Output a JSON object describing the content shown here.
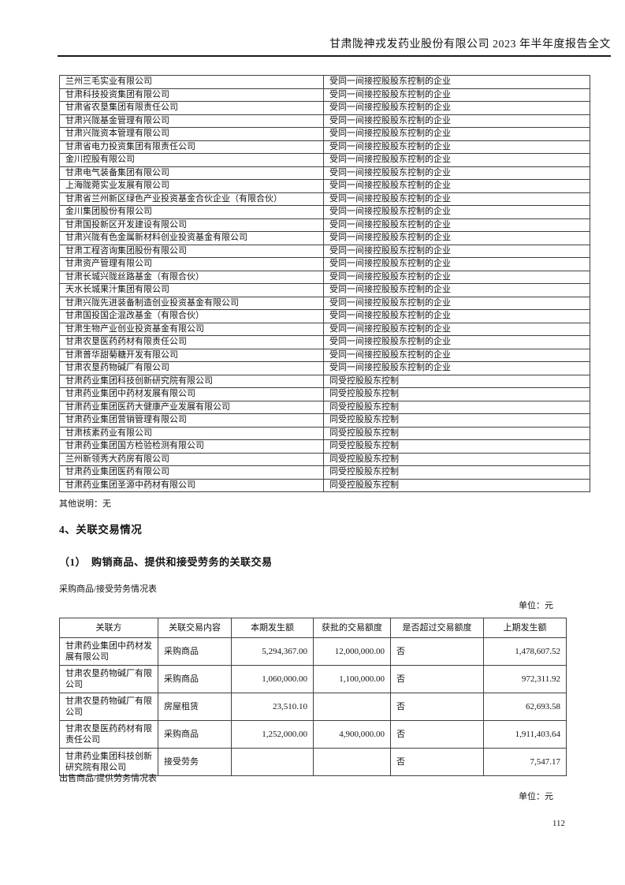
{
  "header": {
    "title": "甘肃陇神戎发药业股份有限公司 2023 年半年度报告全文"
  },
  "related_party_table": {
    "rows": [
      {
        "name": "兰州三毛实业有限公司",
        "relation": "受同一间接控股股东控制的企业"
      },
      {
        "name": "甘肃科技投资集团有限公司",
        "relation": "受同一间接控股股东控制的企业"
      },
      {
        "name": "甘肃省农垦集团有限责任公司",
        "relation": "受同一间接控股股东控制的企业"
      },
      {
        "name": "甘肃兴陇基金管理有限公司",
        "relation": "受同一间接控股股东控制的企业"
      },
      {
        "name": "甘肃兴陇资本管理有限公司",
        "relation": "受同一间接控股股东控制的企业"
      },
      {
        "name": "甘肃省电力投资集团有限责任公司",
        "relation": "受同一间接控股股东控制的企业"
      },
      {
        "name": "金川控股有限公司",
        "relation": "受同一间接控股股东控制的企业"
      },
      {
        "name": "甘肃电气装备集团有限公司",
        "relation": "受同一间接控股股东控制的企业"
      },
      {
        "name": "上海陇菀实业发展有限公司",
        "relation": "受同一间接控股股东控制的企业"
      },
      {
        "name": "甘肃省兰州新区绿色产业投资基金合伙企业（有限合伙）",
        "relation": "受同一间接控股股东控制的企业"
      },
      {
        "name": "金川集团股份有限公司",
        "relation": "受同一间接控股股东控制的企业"
      },
      {
        "name": "甘肃国投新区开发建设有限公司",
        "relation": "受同一间接控股股东控制的企业"
      },
      {
        "name": "甘肃兴陇有色金属新材料创业投资基金有限公司",
        "relation": "受同一间接控股股东控制的企业"
      },
      {
        "name": "甘肃工程咨询集团股份有限公司",
        "relation": "受同一间接控股股东控制的企业"
      },
      {
        "name": "甘肃资产管理有限公司",
        "relation": "受同一间接控股股东控制的企业"
      },
      {
        "name": "甘肃长城兴陇丝路基金（有限合伙）",
        "relation": "受同一间接控股股东控制的企业"
      },
      {
        "name": "天水长城果汁集团有限公司",
        "relation": "受同一间接控股股东控制的企业"
      },
      {
        "name": "甘肃兴陇先进装备制造创业投资基金有限公司",
        "relation": "受同一间接控股股东控制的企业"
      },
      {
        "name": "甘肃国投国企混改基金（有限合伙）",
        "relation": "受同一间接控股股东控制的企业"
      },
      {
        "name": "甘肃生物产业创业投资基金有限公司",
        "relation": "受同一间接控股股东控制的企业"
      },
      {
        "name": "甘肃农垦医药药材有限责任公司",
        "relation": "受同一间接控股股东控制的企业"
      },
      {
        "name": "甘肃普华甜菊糖开发有限公司",
        "relation": "受同一间接控股股东控制的企业"
      },
      {
        "name": "甘肃农垦药物碱厂有限公司",
        "relation": "受同一间接控股股东控制的企业"
      },
      {
        "name": "甘肃药业集团科技创新研究院有限公司",
        "relation": "同受控股股东控制"
      },
      {
        "name": "甘肃药业集团中药材发展有限公司",
        "relation": "同受控股股东控制"
      },
      {
        "name": "甘肃药业集团医药大健康产业发展有限公司",
        "relation": "同受控股股东控制"
      },
      {
        "name": "甘肃药业集团营销管理有限公司",
        "relation": "同受控股股东控制"
      },
      {
        "name": "甘肃核素药业有限公司",
        "relation": "同受控股股东控制"
      },
      {
        "name": "甘肃药业集团国方检验检测有限公司",
        "relation": "同受控股股东控制"
      },
      {
        "name": "兰州新领秀大药房有限公司",
        "relation": "同受控股股东控制"
      },
      {
        "name": "甘肃药业集团医药有限公司",
        "relation": "同受控股股东控制"
      },
      {
        "name": "甘肃药业集团圣源中药材有限公司",
        "relation": "同受控股股东控制"
      }
    ]
  },
  "other_note": "其他说明：无",
  "section": {
    "title": "4、关联交易情况",
    "subtitle": "（1）　购销商品、提供和接受劳务的关联交易"
  },
  "purchase_table": {
    "caption": "采购商品/接受劳务情况表",
    "unit": "单位：元",
    "headers": [
      "关联方",
      "关联交易内容",
      "本期发生额",
      "获批的交易额度",
      "是否超过交易额度",
      "上期发生额"
    ],
    "col_align": [
      "l",
      "l",
      "r",
      "r",
      "l",
      "r"
    ],
    "rows": [
      [
        "甘肃药业集团中药材发展有限公司",
        "采购商品",
        "5,294,367.00",
        "12,000,000.00",
        "否",
        "1,478,607.52"
      ],
      [
        "甘肃农垦药物碱厂有限公司",
        "采购商品",
        "1,060,000.00",
        "1,100,000.00",
        "否",
        "972,311.92"
      ],
      [
        "甘肃农垦药物碱厂有限公司",
        "房屋租赁",
        "23,510.10",
        "",
        "否",
        "62,693.58"
      ],
      [
        "甘肃农垦医药药材有限责任公司",
        "采购商品",
        "1,252,000.00",
        "4,900,000.00",
        "否",
        "1,911,403.64"
      ],
      [
        "甘肃药业集团科技创新研究院有限公司",
        "接受劳务",
        "",
        "",
        "否",
        "7,547.17"
      ]
    ]
  },
  "sales_table": {
    "caption": "出售商品/提供劳务情况表",
    "unit": "单位：元"
  },
  "page_number": "112"
}
